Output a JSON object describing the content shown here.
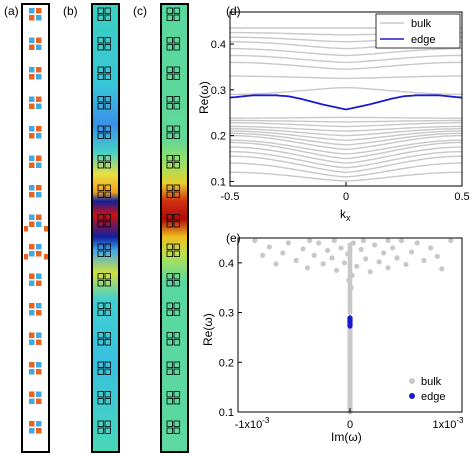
{
  "panel_labels": {
    "a": "(a)",
    "b": "(b)",
    "c": "(c)",
    "d": "(d)",
    "e": "(e)"
  },
  "colors": {
    "orange": "#e8641e",
    "blue_square": "#41a8e0",
    "bulk": "#c8c8c8",
    "edge": "#1a1ad0"
  },
  "chart_data": [
    {
      "panel": "(d)",
      "type": "line",
      "xlabel": "k",
      "xlabel_sub": "x",
      "ylabel": "Re(ω)",
      "xlim": [
        -0.5,
        0.5
      ],
      "ylim": [
        0.09,
        0.47
      ],
      "xticks": [
        "-0.5",
        "0",
        "0.5"
      ],
      "yticks": [
        "0.1",
        "0.2",
        "0.3",
        "0.4"
      ],
      "legend": {
        "position": "top-right",
        "entries": [
          "bulk",
          "edge"
        ]
      },
      "series": [
        {
          "name": "edge",
          "color": "#1a1ad0",
          "x": [
            -0.5,
            -0.4,
            -0.3,
            -0.25,
            -0.2,
            -0.1,
            0,
            0.1,
            0.2,
            0.25,
            0.3,
            0.4,
            0.5
          ],
          "y": [
            0.283,
            0.288,
            0.288,
            0.286,
            0.281,
            0.268,
            0.257,
            0.268,
            0.281,
            0.286,
            0.288,
            0.288,
            0.283
          ]
        },
        {
          "name": "bulk",
          "color": "#c8c8c8",
          "lower_band_edges_at_kx0": [
            0.101,
            0.11,
            0.12,
            0.13,
            0.14,
            0.15,
            0.16,
            0.17,
            0.18,
            0.19,
            0.2,
            0.21,
            0.22,
            0.23,
            0.24
          ],
          "lower_band_edges_at_kx05": [
            0.12,
            0.14,
            0.155,
            0.165,
            0.175,
            0.185,
            0.19,
            0.2,
            0.205,
            0.21,
            0.215,
            0.22,
            0.228,
            0.233,
            0.238
          ],
          "upper_band_at_kx0": [
            0.305,
            0.325,
            0.345,
            0.36,
            0.375,
            0.39,
            0.405,
            0.42,
            0.435
          ],
          "upper_band_at_kx05": [
            0.29,
            0.33,
            0.36,
            0.375,
            0.39,
            0.405,
            0.415,
            0.425,
            0.435
          ]
        }
      ]
    },
    {
      "panel": "(e)",
      "type": "scatter",
      "xlabel": "Im(ω)",
      "ylabel": "Re(ω)",
      "xlim": [
        -0.001,
        0.001
      ],
      "ylim": [
        0.1,
        0.45
      ],
      "xticks": [
        "-1x10",
        "0",
        "1x10"
      ],
      "xtick_exponent": "-3",
      "yticks": [
        "0.1",
        "0.2",
        "0.3",
        "0.4"
      ],
      "legend": {
        "position": "bottom-right",
        "entries": [
          "bulk",
          "edge"
        ]
      },
      "series": [
        {
          "name": "bulk",
          "color": "#c8c8c8",
          "description_values": {
            "scattered_band_re": [
              0.38,
              0.44
            ],
            "column_re": [
              0.1,
              0.27
            ]
          },
          "scatter_points": [
            [
              -0.00085,
              0.445
            ],
            [
              -0.00072,
              0.432
            ],
            [
              -0.0006,
              0.42
            ],
            [
              -0.00055,
              0.44
            ],
            [
              -0.00048,
              0.405
            ],
            [
              -0.00042,
              0.428
            ],
            [
              -0.00038,
              0.39
            ],
            [
              -0.00032,
              0.415
            ],
            [
              -0.00028,
              0.44
            ],
            [
              -0.00024,
              0.398
            ],
            [
              -0.0002,
              0.425
            ],
            [
              -0.00016,
              0.41
            ],
            [
              -0.00012,
              0.385
            ],
            [
              -8e-05,
              0.43
            ],
            [
              -5e-05,
              0.4
            ],
            [
              -2e-05,
              0.418
            ],
            [
              3e-05,
              0.44
            ],
            [
              6e-05,
              0.393
            ],
            [
              0.0001,
              0.427
            ],
            [
              0.00014,
              0.408
            ],
            [
              0.00018,
              0.382
            ],
            [
              0.00022,
              0.436
            ],
            [
              0.00026,
              0.402
            ],
            [
              0.0003,
              0.42
            ],
            [
              0.00034,
              0.39
            ],
            [
              0.00038,
              0.43
            ],
            [
              0.00042,
              0.41
            ],
            [
              0.00046,
              0.445
            ],
            [
              0.0005,
              0.397
            ],
            [
              0.00055,
              0.422
            ],
            [
              0.0006,
              0.44
            ],
            [
              0.00066,
              0.405
            ],
            [
              0.00072,
              0.43
            ],
            [
              0.00078,
              0.413
            ],
            [
              0.00082,
              0.388
            ],
            [
              0.0009,
              0.445
            ],
            [
              -0.00066,
              0.398
            ],
            [
              -0.00078,
              0.415
            ],
            [
              0.00012,
              0.445
            ],
            [
              -0.00014,
              0.445
            ],
            [
              0.00034,
              0.445
            ],
            [
              -0.00036,
              0.445
            ],
            [
              2e-05,
              0.375
            ],
            [
              -1e-05,
              0.365
            ],
            [
              1e-05,
              0.35
            ]
          ]
        },
        {
          "name": "edge",
          "color": "#1a1ad0",
          "x": 0,
          "y_range": [
            0.273,
            0.29
          ]
        }
      ]
    }
  ]
}
